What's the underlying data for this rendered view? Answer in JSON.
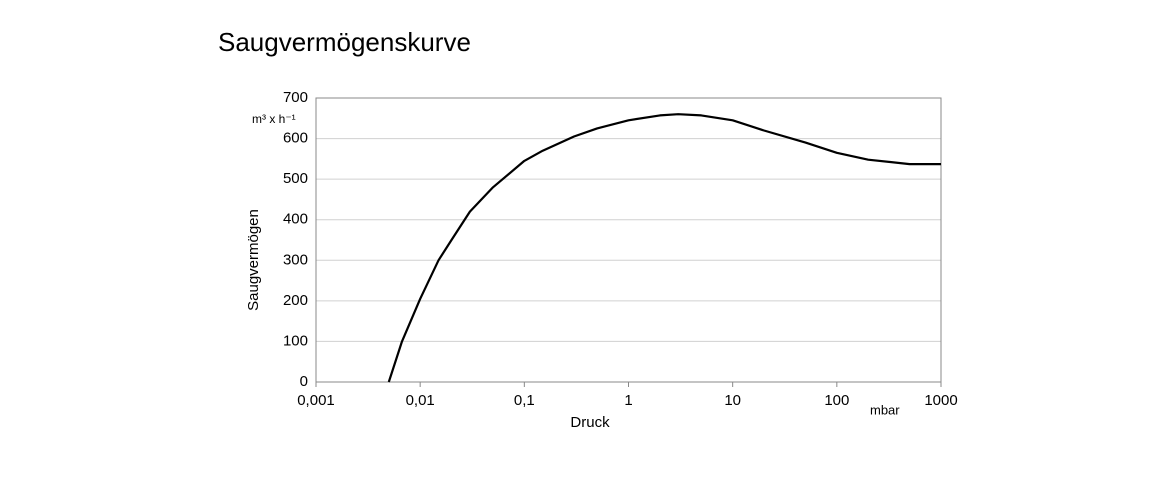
{
  "chart_data": {
    "type": "line",
    "title": "Saugvermögenskurve",
    "x_label": "Druck",
    "x_unit": "mbar",
    "y_label": "Saugvermögen",
    "y_unit": "m³ x h⁻¹",
    "xscale": "log",
    "grid": true,
    "x": [
      0.005,
      0.0067,
      0.01,
      0.015,
      0.02,
      0.03,
      0.05,
      0.1,
      0.15,
      0.3,
      0.5,
      1,
      2,
      3,
      5,
      10,
      20,
      50,
      100,
      200,
      500,
      1000
    ],
    "series": [
      {
        "color": "#000000",
        "values": [
          0,
          100,
          205,
          300,
          350,
          420,
          480,
          545,
          570,
          605,
          625,
          645,
          657,
          660,
          657,
          645,
          620,
          590,
          565,
          548,
          537,
          537
        ]
      }
    ],
    "xlim": [
      0.001,
      1000
    ],
    "xticks": [
      {
        "value": 0.001,
        "label": "0,001"
      },
      {
        "value": 0.01,
        "label": "0,01"
      },
      {
        "value": 0.1,
        "label": "0,1"
      },
      1,
      10,
      100,
      1000
    ],
    "ylim": [
      0,
      700
    ],
    "yticks": [
      0,
      100,
      200,
      300,
      400,
      500,
      600,
      700
    ]
  }
}
